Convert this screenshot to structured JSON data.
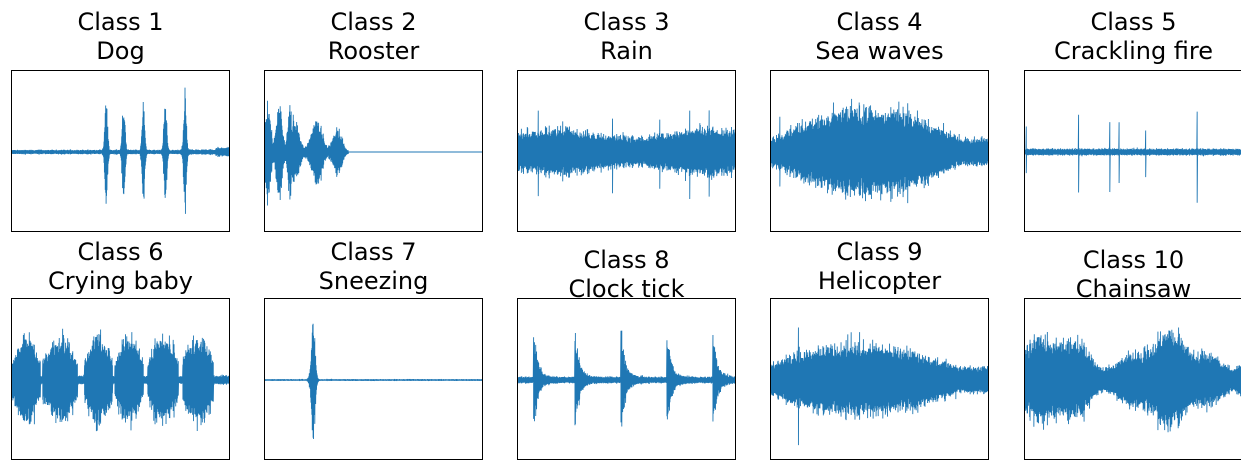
{
  "chart_data": [
    {
      "type": "line",
      "class_label": "Class 1",
      "sound_name": "Dog",
      "line_color": "#1f77b4",
      "pattern": "bark-bursts",
      "bursts": [
        0.43,
        0.51,
        0.6,
        0.7,
        0.79
      ]
    },
    {
      "type": "line",
      "class_label": "Class 2",
      "sound_name": "Rooster",
      "line_color": "#1f77b4",
      "pattern": "crow-then-silence",
      "active_until": 0.38
    },
    {
      "type": "line",
      "class_label": "Class 3",
      "sound_name": "Rain",
      "line_color": "#1f77b4",
      "pattern": "steady-noise"
    },
    {
      "type": "line",
      "class_label": "Class 4",
      "sound_name": "Sea waves",
      "line_color": "#1f77b4",
      "pattern": "swell"
    },
    {
      "type": "line",
      "class_label": "Class 5",
      "sound_name": "Crackling fire",
      "line_color": "#1f77b4",
      "pattern": "sparse-crackles"
    },
    {
      "type": "line",
      "class_label": "Class 6",
      "sound_name": "Crying baby",
      "line_color": "#1f77b4",
      "pattern": "cry-segments"
    },
    {
      "type": "line",
      "class_label": "Class 7",
      "sound_name": "Sneezing",
      "line_color": "#1f77b4",
      "pattern": "single-spike",
      "spike_at": 0.22
    },
    {
      "type": "line",
      "class_label": "Class 8",
      "sound_name": "Clock tick",
      "line_color": "#1f77b4",
      "pattern": "periodic-ticks",
      "ticks": [
        0.07,
        0.26,
        0.47,
        0.68,
        0.89
      ]
    },
    {
      "type": "line",
      "class_label": "Class 9",
      "sound_name": "Helicopter",
      "line_color": "#1f77b4",
      "pattern": "sustained-noise"
    },
    {
      "type": "line",
      "class_label": "Class 10",
      "sound_name": "Chainsaw",
      "line_color": "#1f77b4",
      "pattern": "loud-noise"
    }
  ]
}
